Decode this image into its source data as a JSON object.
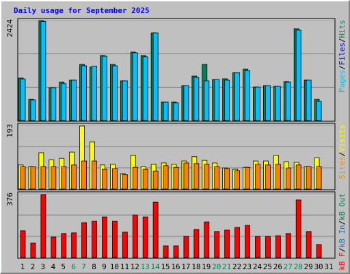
{
  "chart_data": [
    {
      "type": "bar",
      "title": "Daily usage for September 2025",
      "ylim": [
        0,
        2424
      ],
      "yticks": [
        2424
      ],
      "series": [
        {
          "name": "Hits",
          "color": "#00805c",
          "values": [
            1030,
            515,
            2424,
            797,
            930,
            980,
            1361,
            1295,
            1577,
            1361,
            963,
            1660,
            1577,
            2125,
            448,
            448,
            847,
            1079,
            1361,
            996,
            1013,
            1162,
            1245,
            813,
            847,
            830,
            946,
            2225,
            980,
            515,
            0
          ]
        },
        {
          "name": "Pages",
          "color": "#00c0ff",
          "values": [
            1010,
            500,
            2400,
            797,
            897,
            980,
            1328,
            1320,
            1560,
            1328,
            963,
            1643,
            1545,
            2125,
            448,
            432,
            847,
            1046,
            963,
            996,
            980,
            1162,
            1212,
            813,
            847,
            830,
            930,
            2192,
            980,
            465,
            0
          ]
        }
      ],
      "legend": [
        {
          "name": "Pages",
          "color": "#00c0ff"
        },
        {
          "name": "Files",
          "color": "#0000ff"
        },
        {
          "name": "Hits",
          "color": "#00805c"
        }
      ]
    },
    {
      "type": "bar",
      "ylim": [
        0,
        193
      ],
      "yticks": [
        193
      ],
      "series": [
        {
          "name": "Visits",
          "color": "#ffff00",
          "values": [
            73,
            68,
            110,
            89,
            93,
            112,
            191,
            143,
            73,
            75,
            46,
            102,
            68,
            75,
            79,
            75,
            85,
            98,
            87,
            79,
            64,
            60,
            66,
            85,
            85,
            102,
            83,
            81,
            68,
            95,
            0
          ]
        },
        {
          "name": "Sites",
          "color": "#ff8000",
          "values": [
            68,
            68,
            68,
            68,
            68,
            73,
            85,
            85,
            60,
            62,
            44,
            66,
            60,
            54,
            71,
            66,
            79,
            77,
            75,
            68,
            62,
            56,
            66,
            75,
            73,
            75,
            64,
            73,
            68,
            68,
            0
          ]
        }
      ],
      "legend": [
        {
          "name": "Sites",
          "color": "#ff8000"
        },
        {
          "name": "Visits",
          "color": "#ffff00"
        }
      ]
    },
    {
      "type": "bar",
      "ylim": [
        0,
        376
      ],
      "yticks": [
        376
      ],
      "categories": [
        "1",
        "2",
        "3",
        "4",
        "5",
        "6",
        "7",
        "8",
        "9",
        "10",
        "11",
        "12",
        "13",
        "14",
        "15",
        "16",
        "17",
        "18",
        "19",
        "20",
        "21",
        "22",
        "23",
        "24",
        "25",
        "26",
        "27",
        "28",
        "29",
        "30",
        "31"
      ],
      "weekend_indices": [
        5,
        6,
        12,
        13,
        19,
        20,
        26,
        27
      ],
      "weekend_color": "#00805c",
      "series": [
        {
          "name": "kB F",
          "color": "#ff0000",
          "values": [
            158,
            85,
            372,
            121,
            142,
            146,
            206,
            214,
            239,
            214,
            150,
            251,
            239,
            327,
            69,
            69,
            125,
            166,
            210,
            154,
            162,
            178,
            190,
            125,
            125,
            129,
            142,
            340,
            154,
            77,
            0
          ]
        }
      ],
      "legend": [
        {
          "name": "kB F",
          "color": "#ff0000"
        },
        {
          "name": "kB In",
          "color": "#0080c0"
        },
        {
          "name": "kB Out",
          "color": "#00805c"
        }
      ]
    }
  ]
}
